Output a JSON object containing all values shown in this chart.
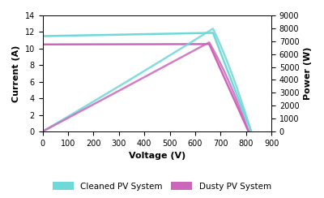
{
  "title": "",
  "xlabel": "Voltage (V)",
  "ylabel_left": "Current (A)",
  "ylabel_right": "Power (W)",
  "xlim": [
    0,
    900
  ],
  "ylim_current": [
    0,
    14
  ],
  "ylim_power": [
    0,
    9000
  ],
  "xticks": [
    0,
    100,
    200,
    300,
    400,
    500,
    600,
    700,
    800,
    900
  ],
  "yticks_current": [
    0,
    2,
    4,
    6,
    8,
    10,
    12,
    14
  ],
  "yticks_power": [
    0,
    1000,
    2000,
    3000,
    4000,
    5000,
    6000,
    7000,
    8000,
    9000
  ],
  "cleaned_color": "#6FD8D8",
  "dusty_color": "#CC66BB",
  "legend_labels": [
    "Cleaned PV System",
    "Dusty PV System"
  ],
  "bg_color": "#FFFFFF",
  "cleaned_isc": 11.5,
  "cleaned_voc": 820,
  "cleaned_impp": 11.9,
  "cleaned_vmpp": 670,
  "dusty_isc": 10.5,
  "dusty_voc": 810,
  "dusty_impp": 10.55,
  "dusty_vmpp": 655
}
